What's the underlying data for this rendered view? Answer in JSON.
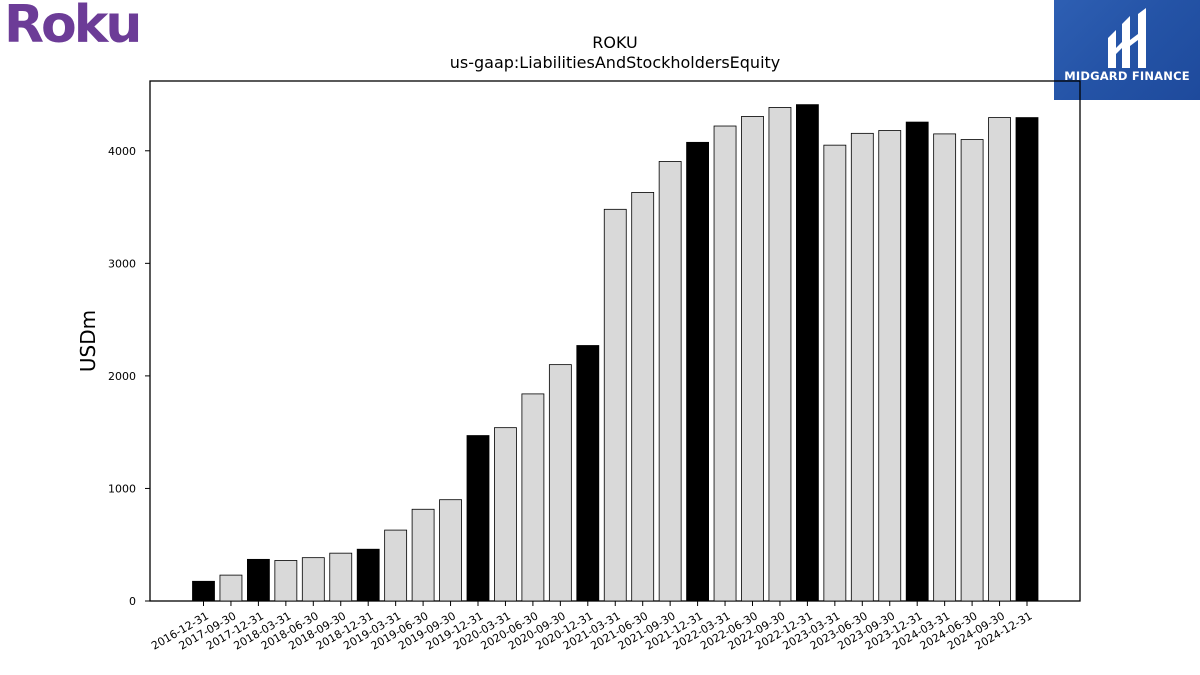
{
  "logo": {
    "text": "Roku",
    "color": "#6c3c97"
  },
  "badge": {
    "text": "MIDGARD FINANCE",
    "color": "#2a5aad",
    "icon": "midgard-logo-icon"
  },
  "colors": {
    "highlight": "#000000",
    "normal": "#d9d9d9",
    "edge": "#000000"
  },
  "chart_data": {
    "type": "bar",
    "title": "ROKU",
    "subtitle": "us-gaap:LiabilitiesAndStockholdersEquity",
    "xlabel": "",
    "ylabel": "USDm",
    "ylim": [
      0,
      4620
    ],
    "yticks": [
      0,
      1000,
      2000,
      3000,
      4000
    ],
    "grid": false,
    "categories": [
      "2016-12-31",
      "2017-09-30",
      "2017-12-31",
      "2018-03-31",
      "2018-06-30",
      "2018-09-30",
      "2018-12-31",
      "2019-03-31",
      "2019-06-30",
      "2019-09-30",
      "2019-12-31",
      "2020-03-31",
      "2020-06-30",
      "2020-09-30",
      "2020-12-31",
      "2021-03-31",
      "2021-06-30",
      "2021-09-30",
      "2021-12-31",
      "2022-03-31",
      "2022-06-30",
      "2022-09-30",
      "2022-12-31",
      "2023-03-31",
      "2023-06-30",
      "2023-09-30",
      "2023-12-31",
      "2024-03-31",
      "2024-06-30",
      "2024-09-30",
      "2024-12-31"
    ],
    "values": [
      175,
      230,
      370,
      360,
      385,
      425,
      460,
      630,
      815,
      900,
      1470,
      1540,
      1840,
      2100,
      2270,
      3480,
      3630,
      3905,
      4075,
      4220,
      4305,
      4385,
      4410,
      4050,
      4155,
      4180,
      4255,
      4150,
      4100,
      4295,
      4295
    ],
    "highlight": [
      true,
      false,
      true,
      false,
      false,
      false,
      true,
      false,
      false,
      false,
      true,
      false,
      false,
      false,
      true,
      false,
      false,
      false,
      true,
      false,
      false,
      false,
      true,
      false,
      false,
      false,
      true,
      false,
      false,
      false,
      true
    ]
  }
}
